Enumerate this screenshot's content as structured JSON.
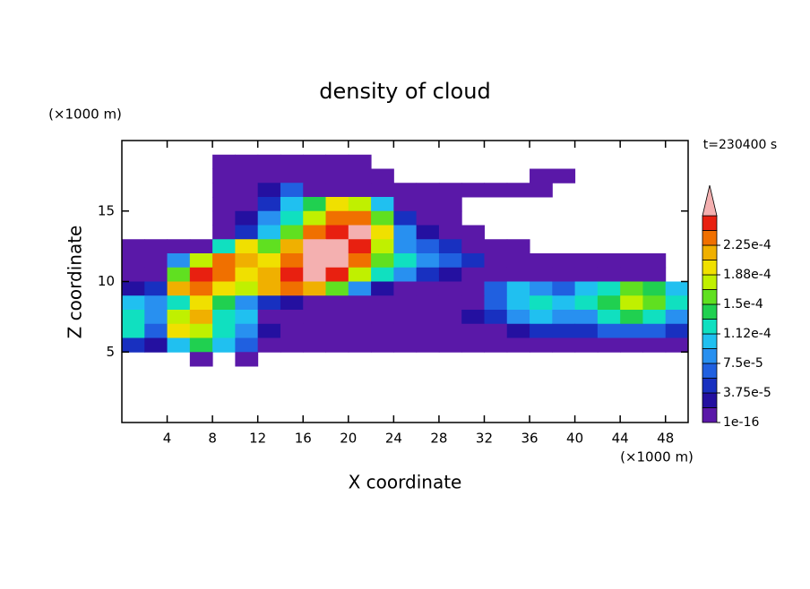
{
  "chart_data": {
    "type": "contour",
    "title": "density of cloud",
    "xlabel": "X coordinate",
    "ylabel": "Z coordinate",
    "x_unit_label": "(×1000 m)",
    "y_unit_label": "(×1000 m)",
    "time_label": "t=230400 s",
    "xlim": [
      0,
      50
    ],
    "ylim": [
      0,
      20
    ],
    "xticks": [
      4,
      8,
      12,
      16,
      20,
      24,
      28,
      32,
      36,
      40,
      44,
      48
    ],
    "yticks": [
      5,
      10,
      15
    ],
    "x": [
      1,
      3,
      5,
      7,
      9,
      11,
      13,
      15,
      17,
      19,
      21,
      23,
      25,
      27,
      29,
      31,
      33,
      35,
      37,
      39,
      41,
      43,
      45,
      47,
      49
    ],
    "y": [
      18.5,
      17.5,
      16.5,
      15.5,
      14.5,
      13.5,
      12.5,
      11.5,
      10.5,
      9.5,
      8.5,
      7.5,
      6.5,
      5.5,
      4.5
    ],
    "z": [
      [
        null,
        null,
        null,
        null,
        5e-06,
        5e-06,
        5e-06,
        5e-06,
        5e-06,
        5e-06,
        5e-06,
        null,
        null,
        null,
        null,
        null,
        null,
        null,
        null,
        null,
        null,
        null,
        null,
        null,
        null
      ],
      [
        null,
        null,
        null,
        null,
        5e-06,
        5e-06,
        5e-06,
        5e-06,
        5e-06,
        5e-06,
        5e-06,
        5e-06,
        null,
        null,
        null,
        null,
        null,
        null,
        5e-06,
        5e-06,
        null,
        null,
        null,
        null,
        null
      ],
      [
        null,
        null,
        null,
        null,
        5e-06,
        5e-06,
        2.8e-05,
        6.6e-05,
        5e-06,
        5e-06,
        5e-06,
        5e-06,
        5e-06,
        5e-06,
        5e-06,
        5e-06,
        5e-06,
        5e-06,
        5e-06,
        null,
        null,
        null,
        null,
        null,
        null
      ],
      [
        null,
        null,
        null,
        null,
        5e-06,
        5e-06,
        4.7e-05,
        0.000103,
        0.000141,
        0.000197,
        0.000178,
        0.000103,
        5e-06,
        5e-06,
        5e-06,
        null,
        null,
        null,
        null,
        null,
        null,
        null,
        null,
        null,
        null
      ],
      [
        null,
        null,
        null,
        null,
        5e-06,
        2.8e-05,
        8.4e-05,
        0.000122,
        0.000178,
        0.000234,
        0.000234,
        0.000159,
        4.7e-05,
        5e-06,
        5e-06,
        null,
        null,
        null,
        null,
        null,
        null,
        null,
        null,
        null,
        null
      ],
      [
        null,
        null,
        null,
        null,
        5e-06,
        4.7e-05,
        0.000103,
        0.000159,
        0.000234,
        0.000253,
        0.00027,
        0.000197,
        8.4e-05,
        2.8e-05,
        5e-06,
        5e-06,
        null,
        null,
        null,
        null,
        null,
        null,
        null,
        null,
        null
      ],
      [
        5e-06,
        5e-06,
        5e-06,
        5e-06,
        0.000122,
        0.000197,
        0.000159,
        0.000216,
        0.00027,
        0.00027,
        0.000253,
        0.000178,
        8.4e-05,
        6.6e-05,
        4.7e-05,
        5e-06,
        5e-06,
        5e-06,
        null,
        null,
        null,
        null,
        null,
        null,
        null
      ],
      [
        5e-06,
        5e-06,
        8.4e-05,
        0.000178,
        0.000234,
        0.000216,
        0.000197,
        0.000234,
        0.00027,
        0.00027,
        0.000234,
        0.000159,
        0.000122,
        8.4e-05,
        6.6e-05,
        4.7e-05,
        5e-06,
        5e-06,
        5e-06,
        5e-06,
        5e-06,
        5e-06,
        5e-06,
        5e-06,
        null
      ],
      [
        5e-06,
        5e-06,
        0.000159,
        0.000253,
        0.000234,
        0.000197,
        0.000216,
        0.000253,
        0.00027,
        0.000253,
        0.000178,
        0.000122,
        8.4e-05,
        4.7e-05,
        2.8e-05,
        5e-06,
        5e-06,
        5e-06,
        5e-06,
        5e-06,
        5e-06,
        5e-06,
        5e-06,
        5e-06,
        null
      ],
      [
        2.8e-05,
        4.7e-05,
        0.000216,
        0.000234,
        0.000197,
        0.000178,
        0.000216,
        0.000234,
        0.000216,
        0.000159,
        8.4e-05,
        2.8e-05,
        5e-06,
        5e-06,
        5e-06,
        5e-06,
        6.6e-05,
        0.000103,
        8.4e-05,
        6.6e-05,
        0.000103,
        0.000122,
        0.000159,
        0.000141,
        0.000103
      ],
      [
        0.000103,
        8.4e-05,
        0.000122,
        0.000197,
        0.000141,
        8.4e-05,
        4.7e-05,
        2.8e-05,
        5e-06,
        5e-06,
        5e-06,
        5e-06,
        5e-06,
        5e-06,
        5e-06,
        5e-06,
        6.6e-05,
        0.000103,
        0.000122,
        0.000103,
        0.000122,
        0.000141,
        0.000178,
        0.000159,
        0.000122
      ],
      [
        0.000122,
        8.4e-05,
        0.000178,
        0.000216,
        0.000122,
        0.000103,
        5e-06,
        5e-06,
        5e-06,
        5e-06,
        5e-06,
        5e-06,
        5e-06,
        5e-06,
        5e-06,
        2.8e-05,
        4.7e-05,
        8.4e-05,
        0.000103,
        8.4e-05,
        8.4e-05,
        0.000122,
        0.000141,
        0.000122,
        8.4e-05
      ],
      [
        0.000122,
        6.6e-05,
        0.000197,
        0.000178,
        0.000122,
        8.4e-05,
        2.8e-05,
        5e-06,
        5e-06,
        5e-06,
        5e-06,
        5e-06,
        5e-06,
        5e-06,
        5e-06,
        5e-06,
        5e-06,
        2.8e-05,
        4.7e-05,
        4.7e-05,
        4.7e-05,
        6.6e-05,
        6.6e-05,
        6.6e-05,
        4.7e-05
      ],
      [
        4.7e-05,
        2.8e-05,
        0.000103,
        0.000141,
        0.000103,
        6.6e-05,
        5e-06,
        5e-06,
        5e-06,
        5e-06,
        5e-06,
        5e-06,
        5e-06,
        5e-06,
        5e-06,
        5e-06,
        5e-06,
        5e-06,
        5e-06,
        5e-06,
        5e-06,
        5e-06,
        5e-06,
        5e-06,
        5e-06
      ],
      [
        null,
        null,
        null,
        5e-06,
        null,
        5e-06,
        null,
        null,
        null,
        null,
        null,
        null,
        null,
        null,
        null,
        null,
        null,
        null,
        null,
        null,
        null,
        null,
        null,
        null,
        null
      ]
    ],
    "levels": [
      1e-16,
      1.875e-05,
      3.75e-05,
      5.625e-05,
      7.5e-05,
      9.375e-05,
      0.0001125,
      0.00013125,
      0.00015,
      0.00016875,
      0.0001875,
      0.00020625,
      0.000225,
      0.00024375,
      0.0002625
    ],
    "colors": [
      "#5a18a8",
      "#2410a0",
      "#1830c0",
      "#2060e0",
      "#2890f0",
      "#20c0f0",
      "#10e0c0",
      "#20d050",
      "#60e020",
      "#c0f000",
      "#f0e000",
      "#f0b000",
      "#f07000",
      "#e82010"
    ],
    "over_color": "#f4b0b0",
    "cbar_ticks": [
      1e-16,
      {
        "value": 3.75e-05,
        "label": "3.75e-5"
      },
      {
        "value": 7.5e-05,
        "label": "7.5e-5"
      },
      {
        "value": 0.0001125,
        "label": "1.12e-4"
      },
      {
        "value": 0.00015,
        "label": "1.5e-4"
      },
      {
        "value": 0.0001875,
        "label": "1.88e-4"
      },
      {
        "value": 0.000225,
        "label": "2.25e-4"
      }
    ]
  }
}
